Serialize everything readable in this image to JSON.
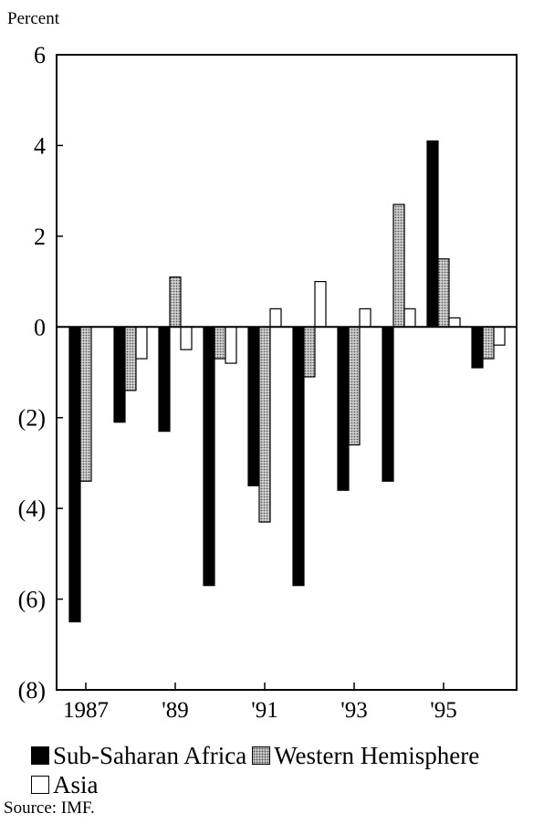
{
  "chart_data": {
    "type": "bar",
    "ylabel": "Percent",
    "ylim": [
      -8,
      6
    ],
    "yticks": [
      6,
      4,
      2,
      0,
      -2,
      -4,
      -6,
      -8
    ],
    "ytick_labels": [
      "6",
      "4",
      "2",
      "0",
      "(2)",
      "(4)",
      "(6)",
      "(8)"
    ],
    "categories": [
      "1987",
      "1988",
      "1989",
      "1990",
      "1991",
      "1992",
      "1993",
      "1994",
      "1995",
      "1996"
    ],
    "xtick_labels": [
      "1987",
      "'89",
      "'91",
      "'93",
      "'95"
    ],
    "xtick_categories": [
      "1987",
      "1989",
      "1991",
      "1993",
      "1995"
    ],
    "series": [
      {
        "name": "Sub-Saharan Africa",
        "color": "#000000",
        "values": [
          -6.5,
          -2.1,
          -2.3,
          -5.7,
          -3.5,
          -5.7,
          -3.6,
          -3.4,
          4.1,
          -0.9
        ]
      },
      {
        "name": "Western Hemisphere",
        "color": "#bdbdbd",
        "values": [
          -3.4,
          -1.4,
          1.1,
          -0.7,
          -4.3,
          -1.1,
          -2.6,
          2.7,
          1.5,
          -0.7
        ]
      },
      {
        "name": "Asia",
        "color": "#ffffff",
        "values": [
          0,
          -0.7,
          -0.5,
          -0.8,
          0.4,
          1.0,
          0.4,
          0.4,
          0.2,
          -0.4
        ]
      }
    ],
    "grid": false,
    "legend_position": "bottom"
  },
  "legend": {
    "ssa": "Sub-Saharan Africa",
    "wh": "Western Hemisphere",
    "asia": "Asia"
  },
  "source": "Source: IMF."
}
